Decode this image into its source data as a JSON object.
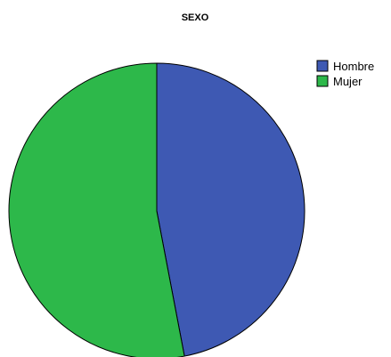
{
  "chart_data": {
    "type": "pie",
    "title": "SEXO",
    "categories": [
      "Hombre",
      "Mujer"
    ],
    "values": [
      47.0,
      53.0
    ],
    "colors": [
      "#3e59b3",
      "#2db84a"
    ],
    "legend_position": "top-right",
    "start_angle_deg": 0,
    "direction": "clockwise"
  }
}
